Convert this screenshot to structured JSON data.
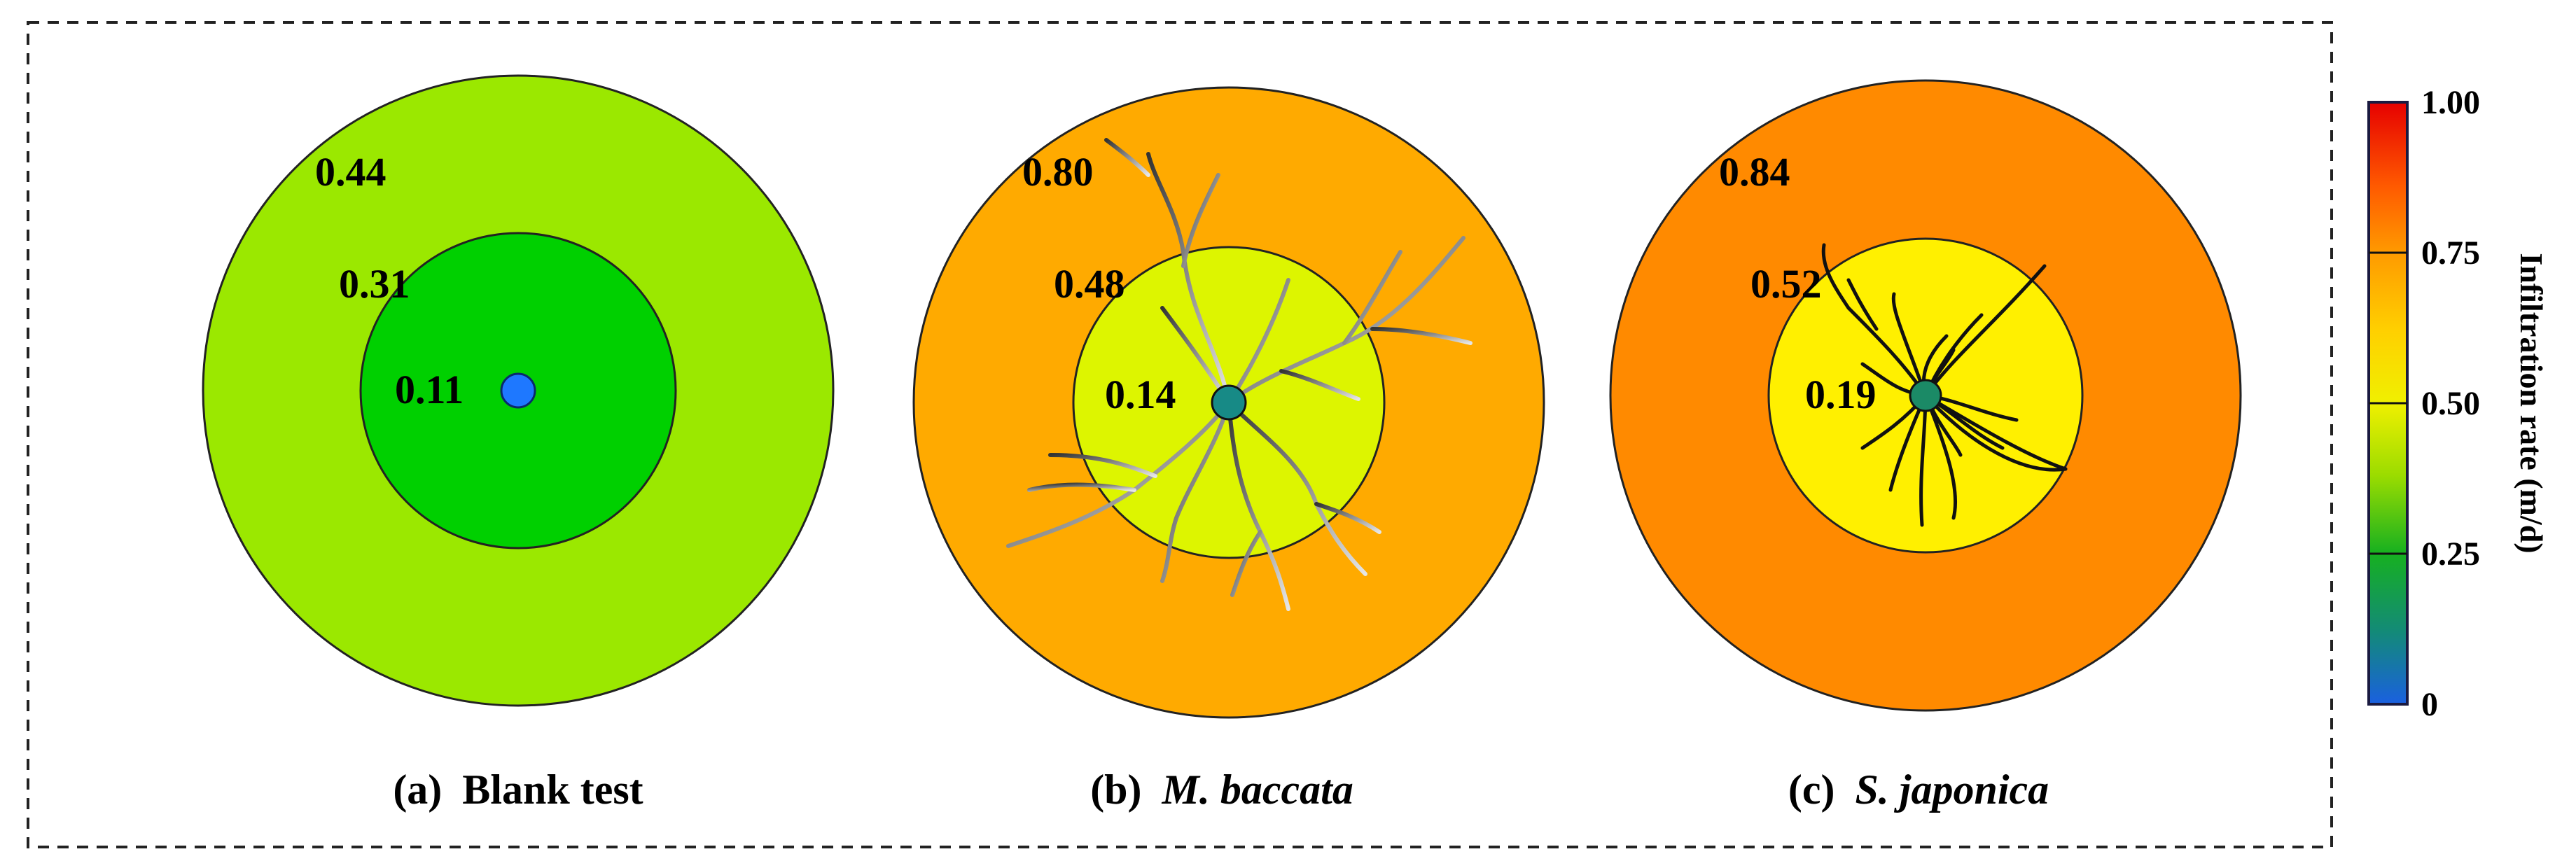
{
  "panels": [
    {
      "id": "a",
      "caption_prefix": "(a)",
      "caption_name": "Blank test",
      "caption_italic": false,
      "outer_value": "0.44",
      "middle_value": "0.31",
      "inner_value": "0.11",
      "outer_color": "#9be800",
      "middle_color": "#00d000",
      "center_color": "#1e78ff"
    },
    {
      "id": "b",
      "caption_prefix": "(b)",
      "caption_name": "M. baccata",
      "caption_italic": true,
      "outer_value": "0.80",
      "middle_value": "0.48",
      "inner_value": "0.14",
      "outer_color": "#ffaa00",
      "middle_color": "#ddf500",
      "center_color": "#178a86"
    },
    {
      "id": "c",
      "caption_prefix": "(c)",
      "caption_name": "S. japonica",
      "caption_italic": true,
      "outer_value": "0.84",
      "middle_value": "0.52",
      "inner_value": "0.19",
      "outer_color": "#ff8a00",
      "middle_color": "#fff000",
      "center_color": "#1b8a66"
    }
  ],
  "colorbar": {
    "title": "Infiltration rate (m/d)",
    "ticks": [
      "1.00",
      "0.75",
      "0.50",
      "0.25",
      "0"
    ],
    "tick_values": [
      1.0,
      0.75,
      0.5,
      0.25,
      0
    ],
    "stops": [
      "#e60000",
      "#ff8a00",
      "#ffd000",
      "#f0f000",
      "#8cdc00",
      "#16b020",
      "#138a78",
      "#1a60e0"
    ]
  }
}
